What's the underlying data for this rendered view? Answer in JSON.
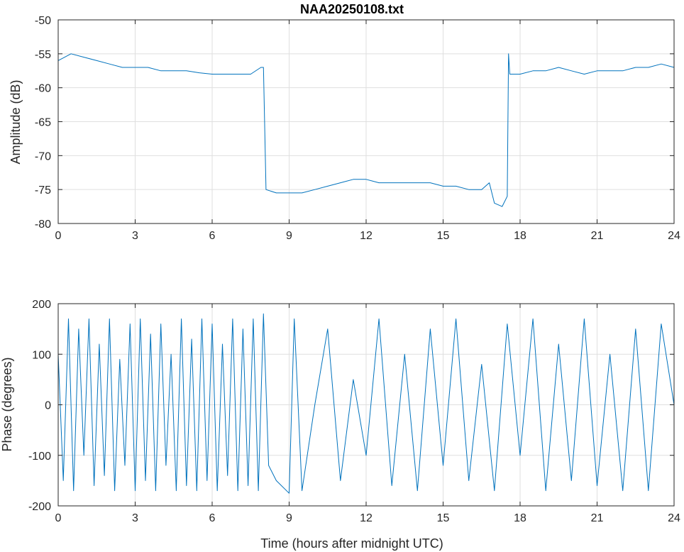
{
  "title": "NAA20250108.txt",
  "colors": {
    "series": "#0072BD"
  },
  "chart_data": [
    {
      "type": "line",
      "title": "NAA20250108.txt",
      "xlabel": "",
      "ylabel": "Amplitude (dB)",
      "xlim": [
        0,
        24
      ],
      "ylim": [
        -80,
        -50
      ],
      "xticks": [
        0,
        3,
        6,
        9,
        12,
        15,
        18,
        21,
        24
      ],
      "xtick_labels": [
        "0",
        "3",
        "6",
        "9",
        "12",
        "15",
        "18",
        "21",
        "24"
      ],
      "yticks": [
        -50,
        -55,
        -60,
        -65,
        -70,
        -75,
        -80
      ],
      "ytick_labels": [
        "-50",
        "-55",
        "-60",
        "-65",
        "-70",
        "-75",
        "-80"
      ],
      "grid": true,
      "series": [
        {
          "x": [
            0,
            0.5,
            1,
            1.5,
            2,
            2.5,
            3,
            3.5,
            4,
            4.5,
            5,
            5.5,
            6,
            6.5,
            7,
            7.5,
            7.9,
            8.0,
            8.1,
            8.5,
            9,
            9.5,
            10,
            10.5,
            11,
            11.5,
            12,
            12.5,
            13,
            13.5,
            14,
            14.5,
            15,
            15.5,
            16,
            16.5,
            16.8,
            17.0,
            17.3,
            17.5,
            17.55,
            17.6,
            18,
            18.5,
            19,
            19.5,
            20,
            20.5,
            21,
            21.5,
            22,
            22.5,
            23,
            23.5,
            24
          ],
          "y": [
            -56,
            -55,
            -55.5,
            -56,
            -56.5,
            -57,
            -57,
            -57,
            -57.5,
            -57.5,
            -57.5,
            -57.8,
            -58,
            -58,
            -58,
            -58,
            -57,
            -57,
            -75,
            -75.5,
            -75.5,
            -75.5,
            -75,
            -74.5,
            -74,
            -73.5,
            -73.5,
            -74,
            -74,
            -74,
            -74,
            -74,
            -74.5,
            -74.5,
            -75,
            -75,
            -74,
            -77,
            -77.5,
            -76,
            -55,
            -58,
            -58,
            -57.5,
            -57.5,
            -57,
            -57.5,
            -58,
            -57.5,
            -57.5,
            -57.5,
            -57,
            -57,
            -56.5,
            -57
          ]
        }
      ]
    },
    {
      "type": "line",
      "title": "",
      "xlabel": "Time (hours after midnight UTC)",
      "ylabel": "Phase (degrees)",
      "xlim": [
        0,
        24
      ],
      "ylim": [
        -200,
        200
      ],
      "xticks": [
        0,
        3,
        6,
        9,
        12,
        15,
        18,
        21,
        24
      ],
      "xtick_labels": [
        "0",
        "3",
        "6",
        "9",
        "12",
        "15",
        "18",
        "21",
        "24"
      ],
      "yticks": [
        200,
        100,
        0,
        -100,
        -200
      ],
      "ytick_labels": [
        "200",
        "100",
        "0",
        "-100",
        "-200"
      ],
      "grid": true,
      "series": [
        {
          "x": [
            0,
            0.2,
            0.4,
            0.6,
            0.8,
            1.0,
            1.2,
            1.4,
            1.6,
            1.8,
            2.0,
            2.2,
            2.4,
            2.6,
            2.8,
            3.0,
            3.2,
            3.4,
            3.6,
            3.8,
            4.0,
            4.2,
            4.4,
            4.6,
            4.8,
            5.0,
            5.2,
            5.4,
            5.6,
            5.8,
            6.0,
            6.2,
            6.4,
            6.6,
            6.8,
            7.0,
            7.2,
            7.4,
            7.6,
            7.8,
            8.0,
            8.2,
            8.5,
            9.0,
            9.2,
            9.5,
            10.0,
            10.5,
            11.0,
            11.5,
            12.0,
            12.5,
            13.0,
            13.5,
            14.0,
            14.5,
            15.0,
            15.5,
            16.0,
            16.5,
            17.0,
            17.5,
            18.0,
            18.5,
            19.0,
            19.5,
            20.0,
            20.5,
            21.0,
            21.5,
            22.0,
            22.5,
            23.0,
            23.5,
            24.0
          ],
          "y": [
            100,
            -150,
            170,
            -170,
            150,
            -100,
            170,
            -160,
            120,
            -140,
            170,
            -170,
            90,
            -120,
            160,
            -170,
            170,
            -150,
            140,
            -170,
            160,
            -120,
            100,
            -170,
            170,
            -160,
            130,
            -170,
            170,
            -150,
            160,
            -170,
            120,
            -140,
            170,
            -170,
            150,
            -160,
            170,
            -170,
            180,
            -120,
            -150,
            -175,
            170,
            -170,
            0,
            150,
            -150,
            50,
            -100,
            170,
            -160,
            100,
            -170,
            150,
            -120,
            170,
            -150,
            80,
            -170,
            160,
            -100,
            170,
            -170,
            120,
            -150,
            170,
            -160,
            100,
            -170,
            150,
            -170,
            160,
            0
          ]
        }
      ]
    }
  ]
}
